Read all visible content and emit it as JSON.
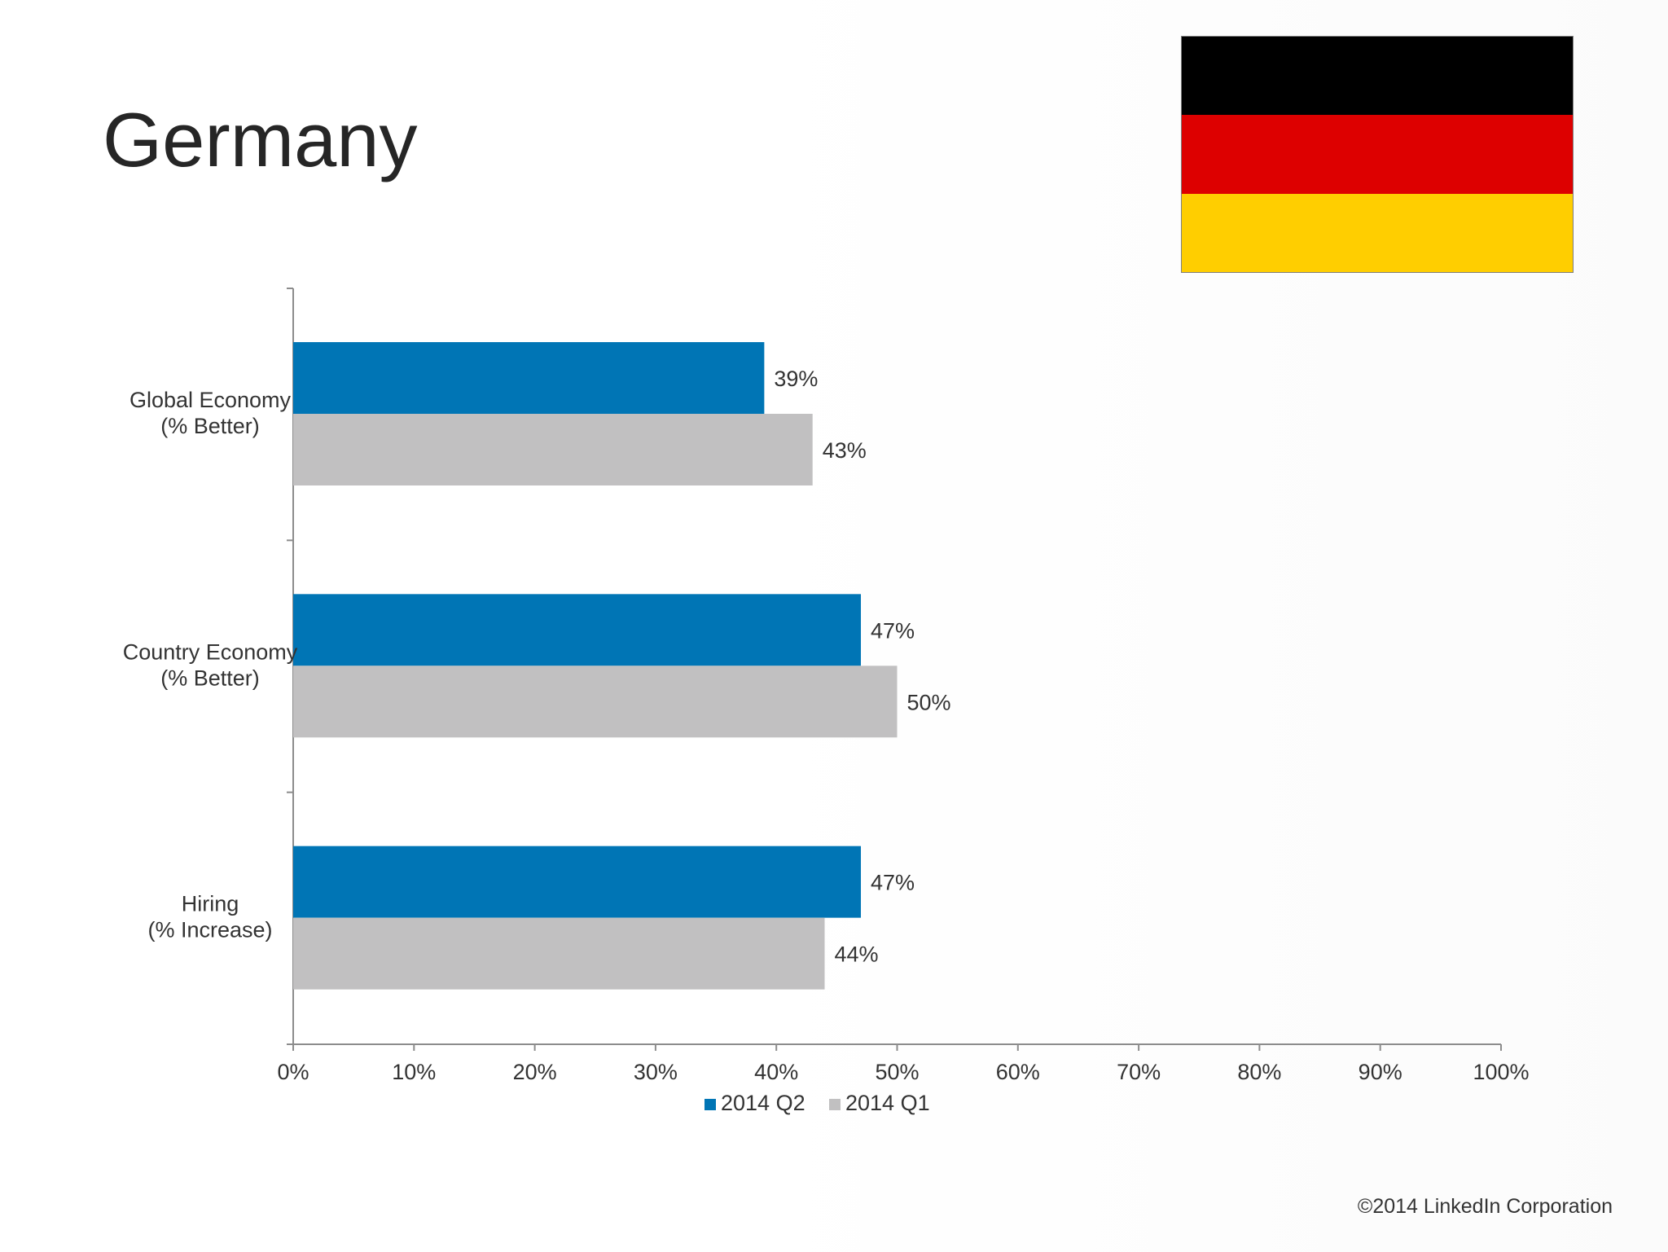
{
  "title": "Germany",
  "flag": {
    "name": "germany-flag",
    "colors": [
      "#000000",
      "#dd0000",
      "#ffce00"
    ]
  },
  "copyright": "©2014 LinkedIn Corporation",
  "colors": {
    "q2": "#0075b5",
    "q1": "#c1c0c1",
    "axis": "#8c8c8c",
    "text": "#333333"
  },
  "chart_data": {
    "type": "bar",
    "orientation": "horizontal",
    "categories": [
      [
        "Global Economy",
        "(% Better)"
      ],
      [
        "Country Economy",
        "(% Better)"
      ],
      [
        "Hiring",
        "(% Increase)"
      ]
    ],
    "series": [
      {
        "name": "2014 Q2",
        "values": [
          39,
          47,
          47
        ],
        "labels": [
          "39%",
          "47%",
          "47%"
        ]
      },
      {
        "name": "2014 Q1",
        "values": [
          43,
          50,
          44
        ],
        "labels": [
          "43%",
          "50%",
          "44%"
        ]
      }
    ],
    "xlim": [
      0,
      100
    ],
    "xticks": [
      "0%",
      "10%",
      "20%",
      "30%",
      "40%",
      "50%",
      "60%",
      "70%",
      "80%",
      "90%",
      "100%"
    ],
    "grid": false,
    "legend": "bottom"
  }
}
